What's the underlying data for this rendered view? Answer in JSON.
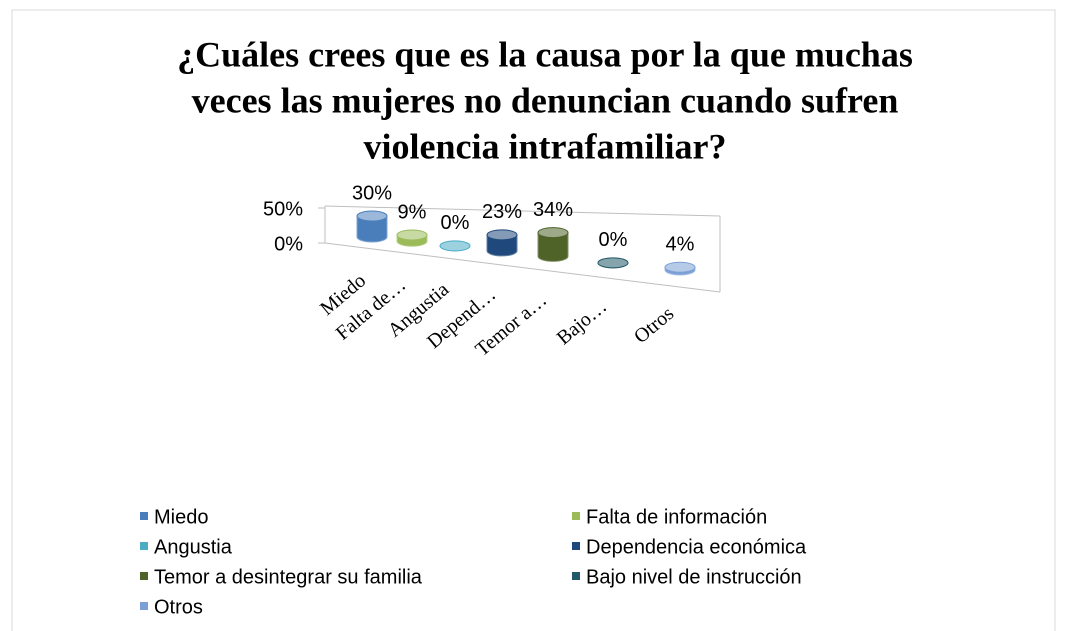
{
  "chart_data": {
    "type": "cylinder3d",
    "title": [
      "¿Cuáles crees que es la causa por la que muchas",
      "veces las mujeres no denuncian cuando sufren",
      "violencia intrafamiliar?"
    ],
    "categories": [
      "Miedo",
      "Falta de…",
      "Angustia",
      "Depend…",
      "Temor a…",
      "Bajo…",
      "Otros"
    ],
    "legend_labels": [
      "Miedo",
      "Falta de información",
      "Angustia",
      "Dependencia económica",
      "Temor a desintegrar su familia",
      "Bajo nivel de instrucción",
      "Otros"
    ],
    "values": [
      30,
      9,
      0,
      23,
      34,
      0,
      4
    ],
    "value_labels": [
      "30%",
      "9%",
      "0%",
      "23%",
      "34%",
      "0%",
      "4%"
    ],
    "colors": [
      "#4a7ebb",
      "#9bbb59",
      "#4bacc6",
      "#1f497d",
      "#4f6228",
      "#215968",
      "#7aa0d6"
    ],
    "ylim": [
      0,
      50
    ],
    "yticks": [
      {
        "value": 0,
        "label": "0%"
      },
      {
        "value": 50,
        "label": "50%"
      }
    ],
    "legend": "bottom"
  }
}
